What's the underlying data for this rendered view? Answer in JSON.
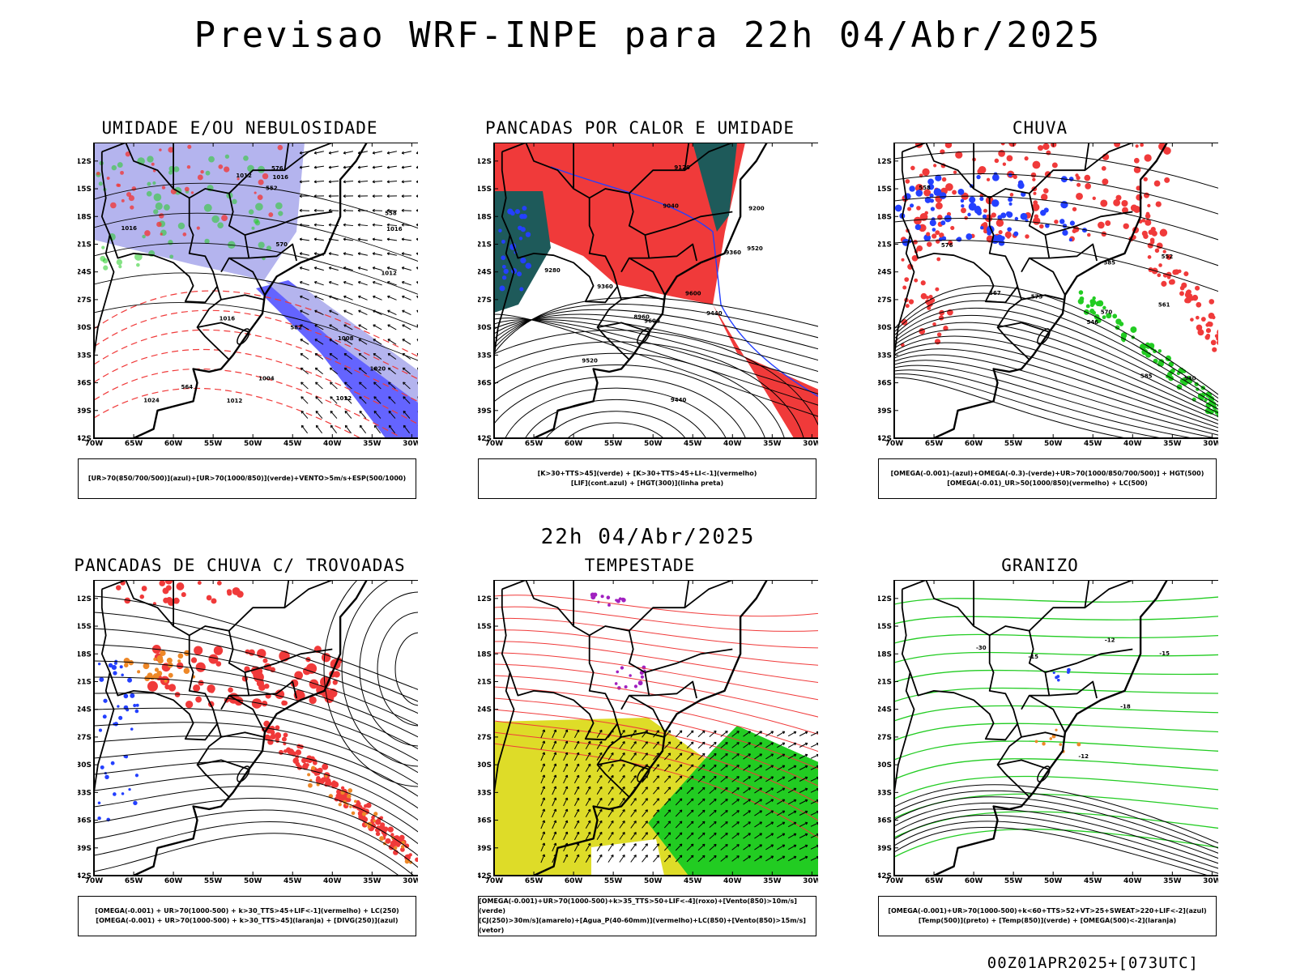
{
  "header": {
    "title": "Previsao WRF-INPE  para 22h 04/Abr/2025",
    "mid_title": "22h 04/Abr/2025",
    "footer": "00Z01APR2025+[073UTC]"
  },
  "axes": {
    "lat_ticks": [
      "12S",
      "15S",
      "18S",
      "21S",
      "24S",
      "27S",
      "30S",
      "33S",
      "36S",
      "39S",
      "42S"
    ],
    "lon_ticks": [
      "70W",
      "65W",
      "60W",
      "55W",
      "50W",
      "45W",
      "40W",
      "35W",
      "30W"
    ]
  },
  "colors": {
    "red": "#f03a3a",
    "blue": "#2440ff",
    "green": "#22cc22",
    "lavender": "#b4b4ee",
    "periwinkle": "#6464ff",
    "teal": "#1e5a5a",
    "yellow": "#dedc28",
    "orange": "#ee8828",
    "purple": "#a020c0"
  },
  "panels": [
    {
      "title": "UMIDADE E/OU NEBULOSIDADE",
      "legend": [
        "[UR>70(850/700/500)](azul)+[UR>70(1000/850)](verde)+VENTO>5m/s+ESP(500/1000)"
      ],
      "contour_labels": [
        "1012",
        "1012",
        "1012",
        "1016",
        "1016",
        "1016",
        "1020",
        "1024",
        "1012",
        "1008",
        "1004",
        "1016",
        "576",
        "570",
        "564",
        "552",
        "582",
        "558"
      ]
    },
    {
      "title": "PANCADAS POR CALOR E UMIDADE",
      "legend": [
        "[K>30+TTS>45](verde) + [K>30+TTS>45+LI<-1](vermelho)",
        "[LIF](cont.azul) + [HGT(300)](linha preta)"
      ],
      "contour_labels": [
        "9600",
        "9520",
        "9440",
        "9360",
        "9280",
        "9200",
        "9120",
        "9040",
        "8960",
        "9600",
        "9520",
        "9440",
        "9360"
      ]
    },
    {
      "title": "CHUVA",
      "legend": [
        "[OMEGA(-0.001)-(azul)+OMEGA(-0.3)-(verde)+UR>70(1000/850/700/500)] + HGT(500)",
        "[OMEGA(-0.01)_UR>50(1000/850)(vermelho) + LC(500)"
      ],
      "contour_labels": [
        "585",
        "585",
        "576",
        "570",
        "573",
        "567",
        "561",
        "558",
        "552",
        "546",
        "540"
      ]
    },
    {
      "title": "PANCADAS DE CHUVA C/ TROVOADAS",
      "legend": [
        "[OMEGA(-0.001) + UR>70(1000-500) + k>30_TTS>45+LIF<-1](vermelho) + LC(250)",
        "[OMEGA(-0.001) + UR>70(1000-500) + k>30_TTS>45](laranja) + [DIVG(250)](azul)"
      ],
      "contour_labels": []
    },
    {
      "title": "TEMPESTADE",
      "legend": [
        "[OMEGA(-0.001)+UR>70(1000-500)+k>35_TTS>50+LIF<-4](roxo)+[Vento(850)>10m/s](verde)",
        "[CJ(250)>30m/s](amarelo)+[Agua_P(40-60mm)](vermelho)+LC(850)+[Vento(850)>15m/s](vetor)"
      ],
      "contour_labels": []
    },
    {
      "title": "GRANIZO",
      "legend": [
        "[OMEGA(-0.001)+UR>70(1000-500)+k<60+TTS>52+VT>25+SWEAT>220+LIF<-2](azul)",
        "[Temp(500)](preto) + [Temp(850)](verde) + [OMEGA(500)<-2](laranja)"
      ],
      "contour_labels": [
        "-12",
        "-15",
        "-18",
        "-12",
        "-15",
        "-30"
      ]
    }
  ]
}
